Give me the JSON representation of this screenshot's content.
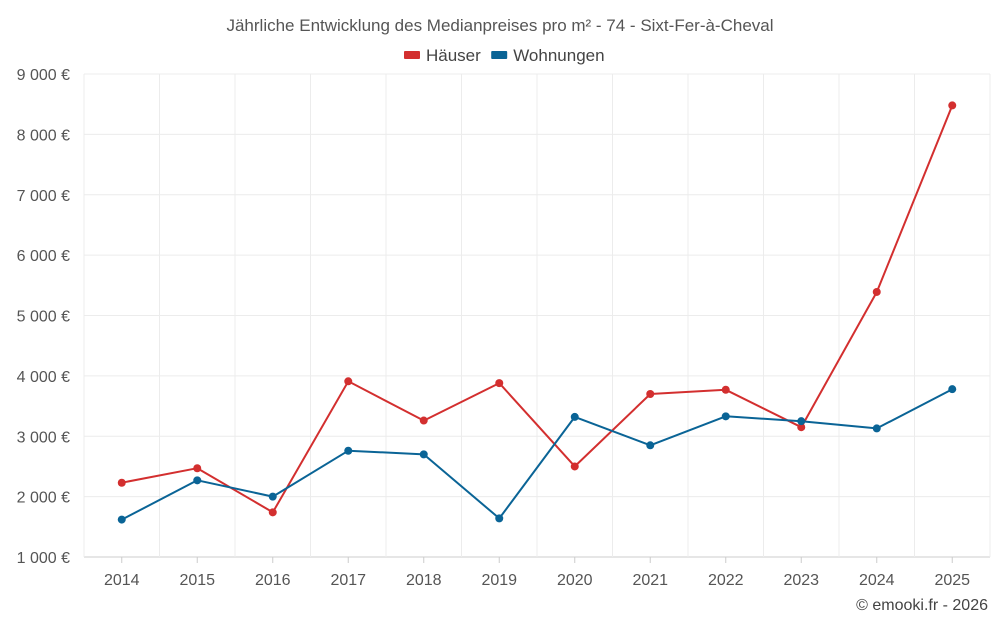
{
  "chart_data": {
    "type": "line",
    "title": "Jährliche Entwicklung des Medianpreises pro m² - 74 - Sixt-Fer-à-Cheval",
    "categories": [
      "2014",
      "2015",
      "2016",
      "2017",
      "2018",
      "2019",
      "2020",
      "2021",
      "2022",
      "2023",
      "2024",
      "2025"
    ],
    "series": [
      {
        "name": "Häuser",
        "color": "#d32f2f",
        "values": [
          2230,
          2470,
          1740,
          3910,
          3260,
          3880,
          2500,
          3700,
          3770,
          3150,
          5390,
          8480
        ]
      },
      {
        "name": "Wohnungen",
        "color": "#0a6496",
        "values": [
          1620,
          2270,
          2000,
          2760,
          2700,
          1640,
          3320,
          2850,
          3330,
          3250,
          3130,
          3780
        ]
      }
    ],
    "ylim": [
      1000,
      9000
    ],
    "yticks": [
      1000,
      2000,
      3000,
      4000,
      5000,
      6000,
      7000,
      8000,
      9000
    ],
    "ytick_labels": [
      "1 000 €",
      "2 000 €",
      "3 000 €",
      "4 000 €",
      "5 000 €",
      "6 000 €",
      "7 000 €",
      "8 000 €",
      "9 000 €"
    ],
    "xlabel": "",
    "ylabel": "",
    "grid": true,
    "legend_position": "top-center"
  },
  "credit": "© emooki.fr - 2026"
}
